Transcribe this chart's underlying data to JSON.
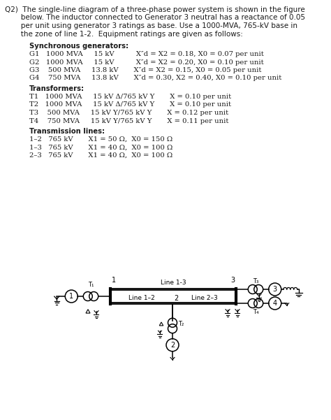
{
  "title": "Q2)  The single-line diagram of a three-phase power system is shown in the figure\n       below. The inductor connected to Generator 3 neutral has a reactance of 0.05\n       per unit using generator 3 ratings as base. Use a 1000-MVA, 765-kV base in\n       the zone of line 1-2.  Equipment ratings are given as follows:",
  "sync_header": "Synchronous generators:",
  "gen_rows": [
    "G1   1000 MVA     15 kV          X″d = X2 = 0.18, X0 = 0.07 per unit",
    "G2   1000 MVA     15 kV          X″d = X2 = 0.20, X0 = 0.10 per unit",
    "G3    500 MVA     13.8 kV       X″d = X2 = 0.15, X0 = 0.05 per unit",
    "G4    750 MVA     13.8 kV       X″d = 0.30, X2 = 0.40, X0 = 0.10 per unit"
  ],
  "trans_header": "Transformers:",
  "trans_rows": [
    "T1   1000 MVA     15 kV Δ/765 kV Y       X = 0.10 per unit",
    "T2   1000 MVA     15 kV Δ/765 kV Y       X = 0.10 per unit",
    "T3    500 MVA     15 kV Y/765 kV Y       X = 0.12 per unit",
    "T4    750 MVA     15 kV Y/765 kV Y       X = 0.11 per unit"
  ],
  "line_header": "Transmission lines:",
  "line_rows": [
    "1–2   765 kV       X1 = 50 Ω,  X0 = 150 Ω",
    "1–3   765 kV       X1 = 40 Ω,  X0 = 100 Ω",
    "2–3   765 kV       X1 = 40 Ω,  X0 = 100 Ω"
  ],
  "bg_color": "#ffffff",
  "text_color": "#1a1a1a"
}
